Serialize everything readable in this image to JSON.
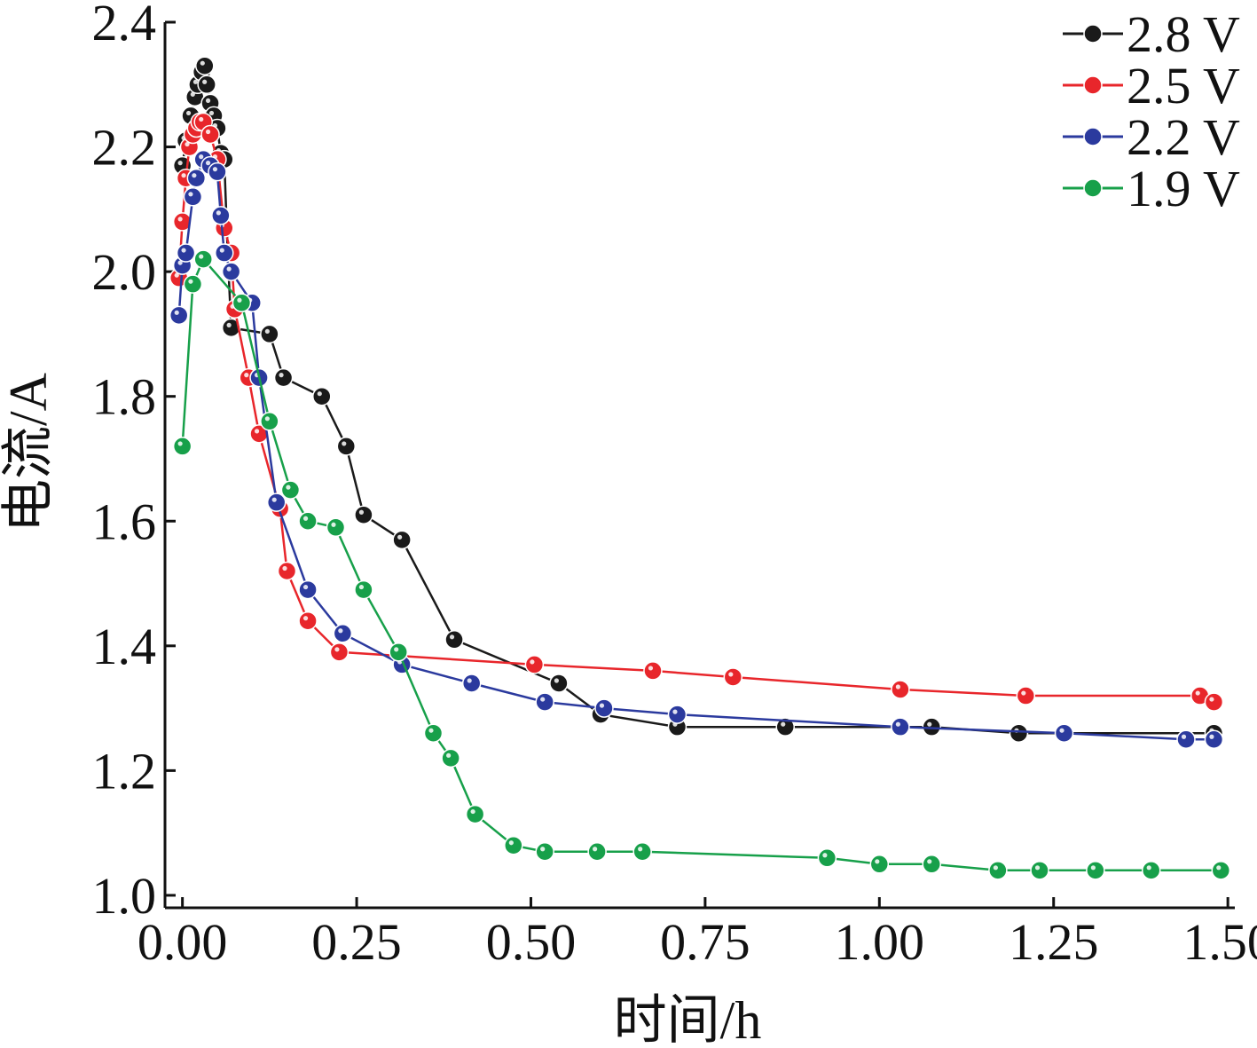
{
  "chart_data": {
    "type": "line",
    "title": "",
    "xlabel": "时间/h",
    "ylabel": "电流/A",
    "xlim": [
      -0.025,
      1.51
    ],
    "ylim": [
      0.98,
      2.4
    ],
    "x_ticks": [
      0.0,
      0.25,
      0.5,
      0.75,
      1.0,
      1.25,
      1.5
    ],
    "x_tick_labels": [
      "0.00",
      "0.25",
      "0.50",
      "0.75",
      "1.00",
      "1.25",
      "1.50"
    ],
    "y_ticks": [
      1.0,
      1.2,
      1.4,
      1.6,
      1.8,
      2.0,
      2.2,
      2.4
    ],
    "y_tick_labels": [
      "1.0",
      "1.2",
      "1.4",
      "1.6",
      "1.8",
      "2.0",
      "2.2",
      "2.4"
    ],
    "grid": false,
    "legend_position": "top-right",
    "series": [
      {
        "name": "2.8 V",
        "color": "#1a1a1a",
        "x": [
          0.0,
          0.005,
          0.012,
          0.018,
          0.022,
          0.028,
          0.032,
          0.035,
          0.04,
          0.045,
          0.05,
          0.055,
          0.06,
          0.065,
          0.07,
          0.125,
          0.145,
          0.2,
          0.235,
          0.26,
          0.315,
          0.39,
          0.54,
          0.6,
          0.71,
          0.865,
          1.075,
          1.2,
          1.48
        ],
        "values": [
          2.17,
          2.21,
          2.25,
          2.28,
          2.3,
          2.32,
          2.33,
          2.3,
          2.27,
          2.25,
          2.23,
          2.19,
          2.18,
          2.03,
          1.91,
          1.9,
          1.83,
          1.8,
          1.72,
          1.61,
          1.57,
          1.41,
          1.34,
          1.29,
          1.27,
          1.27,
          1.27,
          1.26,
          1.26
        ]
      },
      {
        "name": "2.5 V",
        "color": "#e8262b",
        "x": [
          -0.005,
          0.0,
          0.005,
          0.01,
          0.015,
          0.02,
          0.025,
          0.03,
          0.04,
          0.05,
          0.06,
          0.07,
          0.075,
          0.095,
          0.11,
          0.14,
          0.15,
          0.18,
          0.225,
          0.505,
          0.675,
          0.79,
          1.03,
          1.21,
          1.46,
          1.48
        ],
        "values": [
          1.99,
          2.08,
          2.15,
          2.2,
          2.22,
          2.23,
          2.24,
          2.24,
          2.22,
          2.18,
          2.07,
          2.03,
          1.94,
          1.83,
          1.74,
          1.62,
          1.52,
          1.44,
          1.39,
          1.37,
          1.36,
          1.35,
          1.33,
          1.32,
          1.32,
          1.31
        ]
      },
      {
        "name": "2.2 V",
        "color": "#2b3a9e",
        "x": [
          -0.005,
          0.0,
          0.005,
          0.015,
          0.02,
          0.03,
          0.04,
          0.05,
          0.055,
          0.06,
          0.07,
          0.1,
          0.11,
          0.135,
          0.18,
          0.23,
          0.315,
          0.415,
          0.52,
          0.605,
          0.71,
          1.03,
          1.265,
          1.44,
          1.48
        ],
        "values": [
          1.93,
          2.01,
          2.03,
          2.12,
          2.15,
          2.18,
          2.17,
          2.16,
          2.09,
          2.03,
          2.0,
          1.95,
          1.83,
          1.63,
          1.49,
          1.42,
          1.37,
          1.34,
          1.31,
          1.3,
          1.29,
          1.27,
          1.26,
          1.25,
          1.25
        ]
      },
      {
        "name": "1.9 V",
        "color": "#17a04a",
        "x": [
          0.0,
          0.015,
          0.03,
          0.085,
          0.125,
          0.155,
          0.18,
          0.22,
          0.26,
          0.31,
          0.36,
          0.385,
          0.42,
          0.475,
          0.52,
          0.595,
          0.66,
          0.925,
          1.0,
          1.075,
          1.17,
          1.23,
          1.31,
          1.39,
          1.49
        ],
        "values": [
          1.72,
          1.98,
          2.02,
          1.95,
          1.76,
          1.65,
          1.6,
          1.59,
          1.49,
          1.39,
          1.26,
          1.22,
          1.13,
          1.08,
          1.07,
          1.07,
          1.07,
          1.06,
          1.05,
          1.05,
          1.04,
          1.04,
          1.04,
          1.04,
          1.04
        ]
      }
    ]
  }
}
